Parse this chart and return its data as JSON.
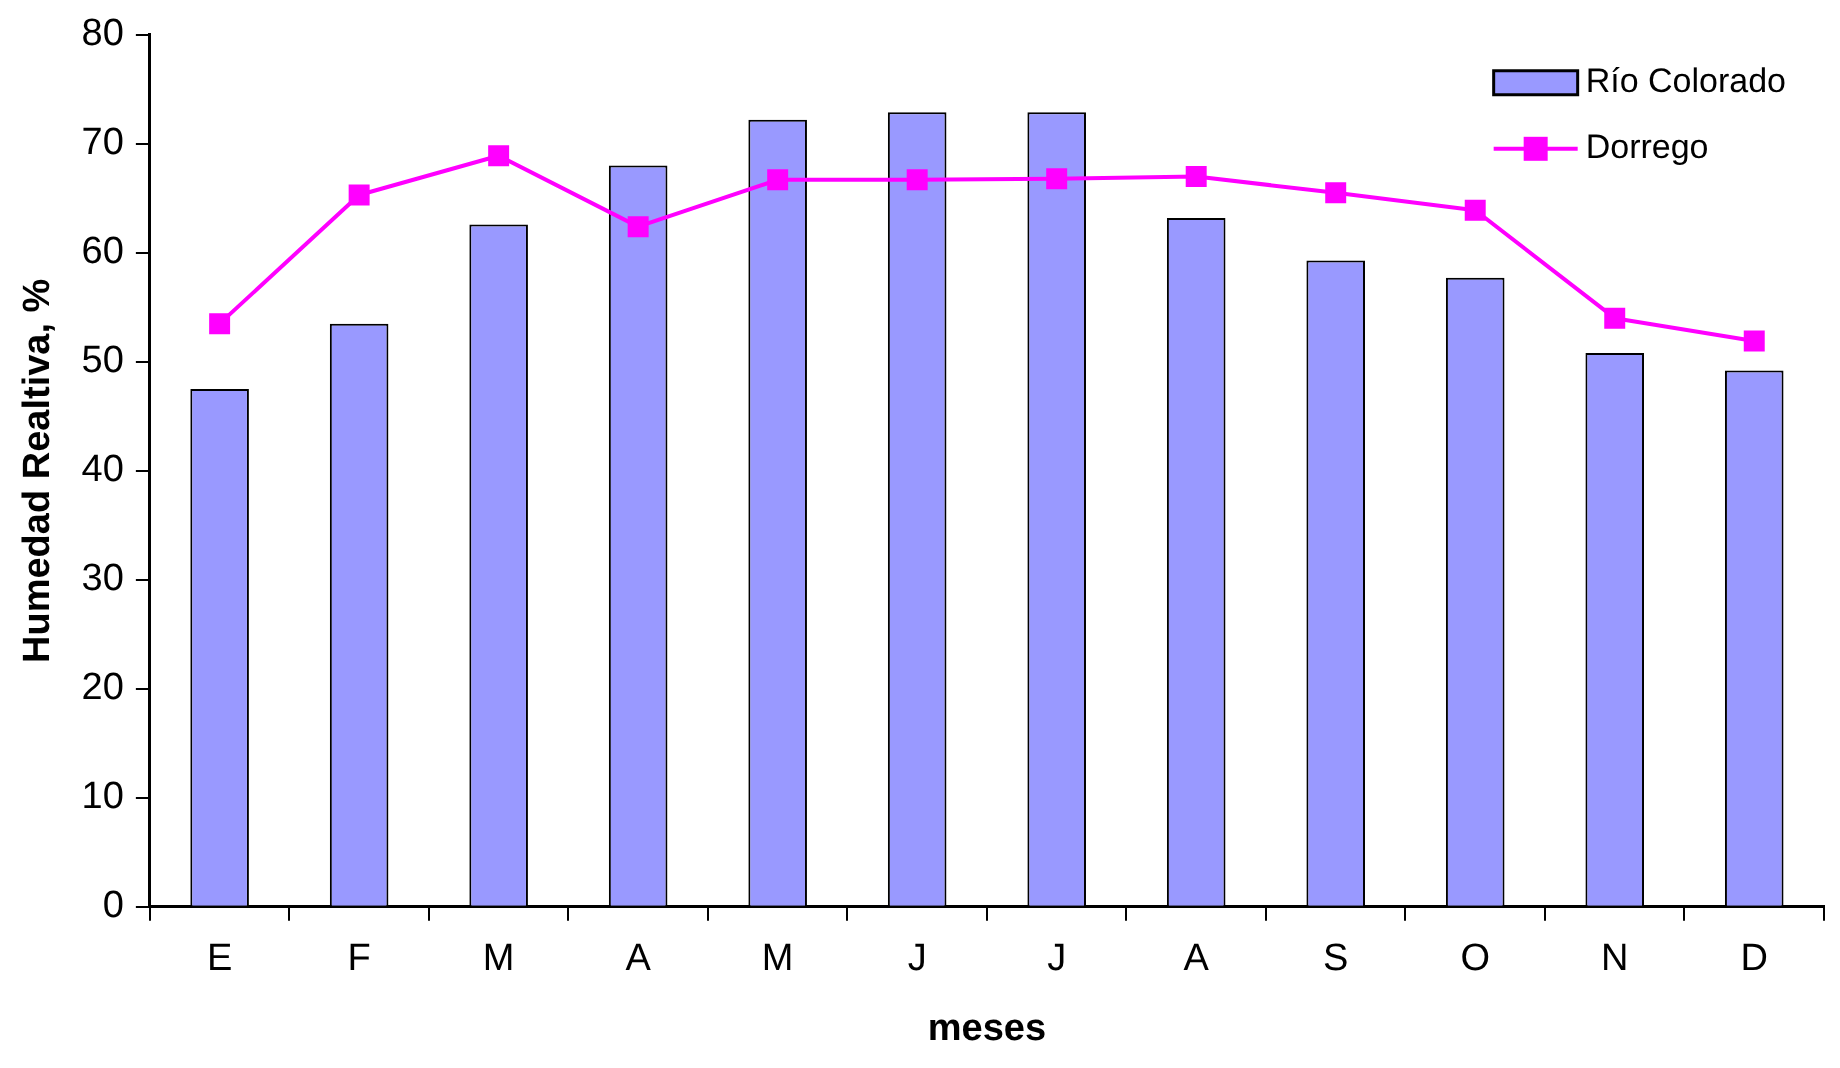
{
  "chart_data": {
    "type": "bar",
    "xlabel": "meses",
    "ylabel": "Humedad Realtiva, %",
    "categories": [
      "E",
      "F",
      "M",
      "A",
      "M",
      "J",
      "J",
      "A",
      "S",
      "O",
      "N",
      "D"
    ],
    "series": [
      {
        "name": "Río Colorado",
        "color": "#9999ff",
        "values": [
          47.5,
          53.5,
          62.6,
          68.0,
          72.2,
          72.9,
          72.9,
          63.2,
          59.3,
          57.7,
          50.8,
          49.2
        ]
      },
      {
        "name": "Dorrego",
        "type": "line",
        "color": "#ff00ff",
        "values": [
          53.5,
          65.3,
          68.9,
          62.4,
          66.7,
          66.7,
          66.8,
          67.0,
          65.5,
          63.9,
          54.0,
          51.9
        ]
      }
    ],
    "ylim": [
      0,
      80
    ],
    "yticks": [
      0,
      10,
      20,
      30,
      40,
      50,
      60,
      70,
      80
    ],
    "grid": false,
    "legend": "top right",
    "marker": "square"
  }
}
